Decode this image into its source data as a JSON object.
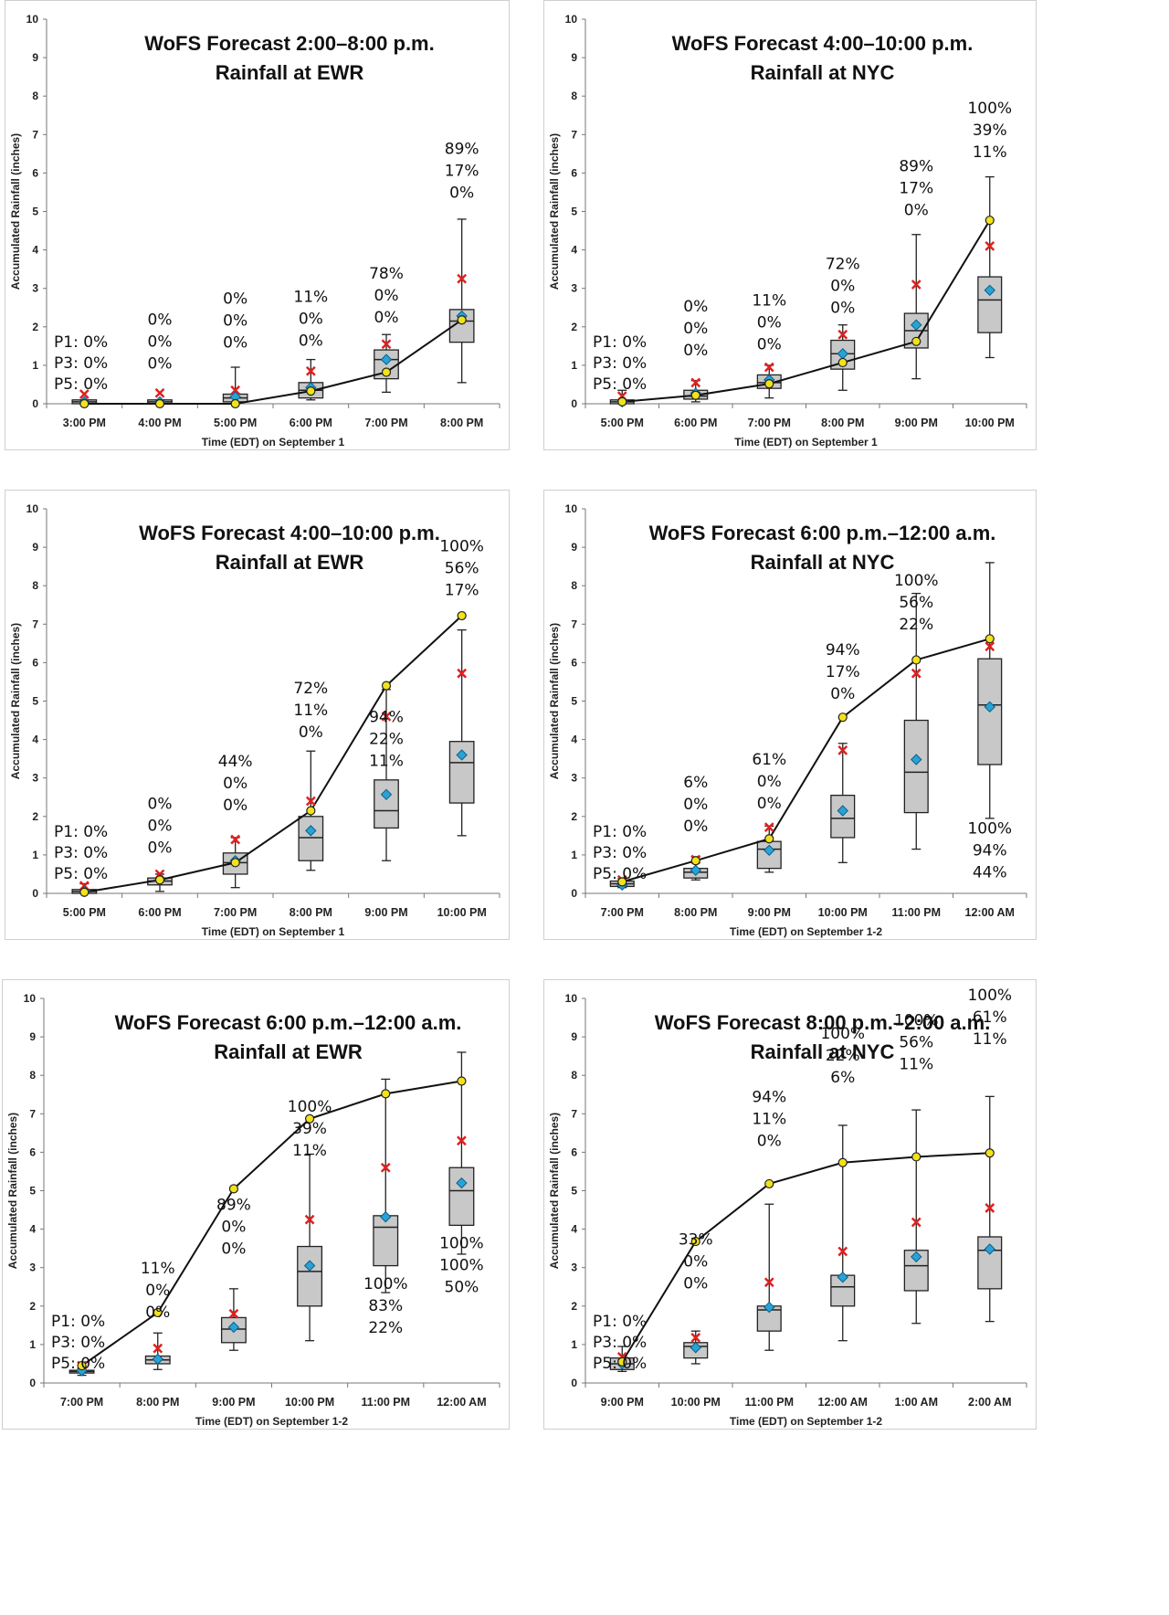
{
  "chart_data": [
    {
      "type": "box",
      "title_lines": [
        "WoFS Forecast 2:00–8:00 p.m.",
        "Rainfall at EWR"
      ],
      "xlabel": "Time (EDT) on September 1",
      "ylabel": "Accumulated Rainfall (inches)",
      "ylim": [
        0,
        10
      ],
      "yticks": [
        "0",
        "1",
        "2",
        "3",
        "4",
        "5",
        "6",
        "7",
        "8",
        "9",
        "10"
      ],
      "categories": [
        "3:00 PM",
        "4:00 PM",
        "5:00 PM",
        "6:00 PM",
        "7:00 PM",
        "8:00 PM"
      ],
      "box": [
        {
          "min": 0,
          "q1": 0,
          "median": 0.05,
          "q3": 0.1,
          "max": 0.1
        },
        {
          "min": 0,
          "q1": 0,
          "median": 0.05,
          "q3": 0.1,
          "max": 0.1
        },
        {
          "min": 0,
          "q1": 0.05,
          "median": 0.15,
          "q3": 0.25,
          "max": 0.95
        },
        {
          "min": 0.1,
          "q1": 0.15,
          "median": 0.35,
          "q3": 0.55,
          "max": 1.15
        },
        {
          "min": 0.3,
          "q1": 0.65,
          "median": 1.15,
          "q3": 1.4,
          "max": 1.8
        },
        {
          "min": 0.55,
          "q1": 1.6,
          "median": 2.15,
          "q3": 2.45,
          "max": 4.8
        }
      ],
      "mean": [
        0.05,
        0.05,
        0.18,
        0.42,
        1.15,
        2.28
      ],
      "x_marker": [
        0.25,
        0.28,
        0.35,
        0.85,
        1.55,
        3.25
      ],
      "observed": [
        0,
        0,
        0,
        0.33,
        0.82,
        2.18
      ],
      "probabilities": [
        {
          "category_index": 1,
          "anchor": "top",
          "y": 2.05,
          "lines": [
            "0%",
            "0%",
            "0%"
          ]
        },
        {
          "category_index": 2,
          "anchor": "top",
          "y": 2.6,
          "lines": [
            "0%",
            "0%",
            "0%"
          ]
        },
        {
          "category_index": 3,
          "anchor": "top",
          "y": 2.65,
          "lines": [
            "11%",
            "0%",
            "0%"
          ]
        },
        {
          "category_index": 4,
          "anchor": "top",
          "y": 3.25,
          "lines": [
            "78%",
            "0%",
            "0%"
          ]
        },
        {
          "category_index": 5,
          "anchor": "top",
          "y": 6.5,
          "lines": [
            "89%",
            "17%",
            "0%"
          ]
        }
      ],
      "threshold_labels": [
        "P1: 0%",
        "P3: 0%",
        "P5: 0%"
      ]
    },
    {
      "type": "box",
      "title_lines": [
        "WoFS Forecast 4:00–10:00 p.m.",
        "Rainfall at NYC"
      ],
      "xlabel": "Time (EDT) on September 1",
      "ylabel": "Accumulated Rainfall (inches)",
      "ylim": [
        0,
        10
      ],
      "yticks": [
        "0",
        "1",
        "2",
        "3",
        "4",
        "5",
        "6",
        "7",
        "8",
        "9",
        "10"
      ],
      "categories": [
        "5:00 PM",
        "6:00 PM",
        "7:00 PM",
        "8:00 PM",
        "9:00 PM",
        "10:00 PM"
      ],
      "box": [
        {
          "min": 0,
          "q1": 0,
          "median": 0.05,
          "q3": 0.1,
          "max": 0.35
        },
        {
          "min": 0.05,
          "q1": 0.12,
          "median": 0.2,
          "q3": 0.35,
          "max": 0.6
        },
        {
          "min": 0.15,
          "q1": 0.4,
          "median": 0.55,
          "q3": 0.75,
          "max": 1.0
        },
        {
          "min": 0.35,
          "q1": 0.9,
          "median": 1.3,
          "q3": 1.65,
          "max": 2.05
        },
        {
          "min": 0.65,
          "q1": 1.45,
          "median": 1.9,
          "q3": 2.35,
          "max": 4.4
        },
        {
          "min": 1.2,
          "q1": 1.85,
          "median": 2.7,
          "q3": 3.3,
          "max": 5.9
        }
      ],
      "mean": [
        0.05,
        0.27,
        0.62,
        1.3,
        2.05,
        2.95
      ],
      "x_marker": [
        0.2,
        0.55,
        0.95,
        1.8,
        3.1,
        4.1
      ],
      "observed": [
        0.05,
        0.22,
        0.52,
        1.07,
        1.62,
        4.77
      ],
      "probabilities": [
        {
          "category_index": 1,
          "anchor": "top",
          "y": 2.4,
          "lines": [
            "0%",
            "0%",
            "0%"
          ]
        },
        {
          "category_index": 2,
          "anchor": "top",
          "y": 2.55,
          "lines": [
            "11%",
            "0%",
            "0%"
          ]
        },
        {
          "category_index": 3,
          "anchor": "top",
          "y": 3.5,
          "lines": [
            "72%",
            "0%",
            "0%"
          ]
        },
        {
          "category_index": 4,
          "anchor": "top",
          "y": 6.05,
          "lines": [
            "89%",
            "17%",
            "0%"
          ]
        },
        {
          "category_index": 5,
          "anchor": "top",
          "y": 7.55,
          "lines": [
            "100%",
            "39%",
            "11%"
          ]
        }
      ],
      "threshold_labels": [
        "P1: 0%",
        "P3: 0%",
        "P5: 0%"
      ]
    },
    {
      "type": "box",
      "title_lines": [
        "WoFS Forecast 4:00–10:00 p.m.",
        "Rainfall at EWR"
      ],
      "xlabel": "Time (EDT) on September 1",
      "ylabel": "Accumulated Rainfall (inches)",
      "ylim": [
        0,
        10
      ],
      "yticks": [
        "0",
        "1",
        "2",
        "3",
        "4",
        "5",
        "6",
        "7",
        "8",
        "9",
        "10"
      ],
      "categories": [
        "5:00 PM",
        "6:00 PM",
        "7:00 PM",
        "8:00 PM",
        "9:00 PM",
        "10:00 PM"
      ],
      "box": [
        {
          "min": 0,
          "q1": 0,
          "median": 0.05,
          "q3": 0.1,
          "max": 0.25
        },
        {
          "min": 0.05,
          "q1": 0.22,
          "median": 0.32,
          "q3": 0.4,
          "max": 0.5
        },
        {
          "min": 0.15,
          "q1": 0.5,
          "median": 0.8,
          "q3": 1.05,
          "max": 1.45
        },
        {
          "min": 0.6,
          "q1": 0.85,
          "median": 1.45,
          "q3": 2.0,
          "max": 3.7
        },
        {
          "min": 0.85,
          "q1": 1.7,
          "median": 2.15,
          "q3": 2.95,
          "max": 5.3
        },
        {
          "min": 1.5,
          "q1": 2.35,
          "median": 3.4,
          "q3": 3.95,
          "max": 6.85
        }
      ],
      "mean": [
        0.05,
        0.35,
        0.85,
        1.63,
        2.57,
        3.6
      ],
      "x_marker": [
        0.2,
        0.5,
        1.4,
        2.4,
        4.6,
        5.72
      ],
      "observed": [
        0.03,
        0.35,
        0.8,
        2.15,
        5.4,
        7.22
      ],
      "probabilities": [
        {
          "category_index": 1,
          "anchor": "top",
          "y": 2.2,
          "lines": [
            "0%",
            "0%",
            "0%"
          ]
        },
        {
          "category_index": 2,
          "anchor": "top",
          "y": 3.3,
          "lines": [
            "44%",
            "0%",
            "0%"
          ]
        },
        {
          "category_index": 3,
          "anchor": "top",
          "y": 5.2,
          "lines": [
            "72%",
            "11%",
            "0%"
          ]
        },
        {
          "category_index": 4,
          "anchor": "top",
          "y": 4.45,
          "lines": [
            "94%",
            "22%",
            "11%"
          ]
        },
        {
          "category_index": 5,
          "anchor": "top",
          "y": 8.9,
          "lines": [
            "100%",
            "56%",
            "17%"
          ]
        }
      ],
      "threshold_labels": [
        "P1: 0%",
        "P3: 0%",
        "P5: 0%"
      ]
    },
    {
      "type": "box",
      "title_lines": [
        "WoFS Forecast 6:00 p.m.–12:00 a.m.",
        "Rainfall at NYC"
      ],
      "xlabel": "Time (EDT) on September 1-2",
      "ylabel": "Accumulated Rainfall (inches)",
      "ylim": [
        0,
        10
      ],
      "yticks": [
        "0",
        "1",
        "2",
        "3",
        "4",
        "5",
        "6",
        "7",
        "8",
        "9",
        "10"
      ],
      "categories": [
        "7:00 PM",
        "8:00 PM",
        "9:00 PM",
        "10:00 PM",
        "11:00 PM",
        "12:00 AM"
      ],
      "box": [
        {
          "min": 0.15,
          "q1": 0.18,
          "median": 0.25,
          "q3": 0.32,
          "max": 0.38
        },
        {
          "min": 0.35,
          "q1": 0.4,
          "median": 0.55,
          "q3": 0.65,
          "max": 0.95
        },
        {
          "min": 0.55,
          "q1": 0.65,
          "median": 1.15,
          "q3": 1.35,
          "max": 1.75
        },
        {
          "min": 0.8,
          "q1": 1.45,
          "median": 1.95,
          "q3": 2.55,
          "max": 3.9
        },
        {
          "min": 1.15,
          "q1": 2.1,
          "median": 3.15,
          "q3": 4.5,
          "max": 7.8
        },
        {
          "min": 1.95,
          "q1": 3.35,
          "median": 4.9,
          "q3": 6.1,
          "max": 8.6
        }
      ],
      "mean": [
        0.22,
        0.6,
        1.12,
        2.15,
        3.48,
        4.85
      ],
      "x_marker": [
        0.35,
        0.88,
        1.72,
        3.72,
        5.72,
        6.42
      ],
      "observed": [
        0.3,
        0.85,
        1.42,
        4.58,
        6.07,
        6.62
      ],
      "probabilities": [
        {
          "category_index": 1,
          "anchor": "top",
          "y": 2.75,
          "lines": [
            "6%",
            "0%",
            "0%"
          ]
        },
        {
          "category_index": 2,
          "anchor": "top",
          "y": 3.35,
          "lines": [
            "61%",
            "0%",
            "0%"
          ]
        },
        {
          "category_index": 3,
          "anchor": "top",
          "y": 6.2,
          "lines": [
            "94%",
            "17%",
            "0%"
          ]
        },
        {
          "category_index": 4,
          "anchor": "top",
          "y": 8.0,
          "lines": [
            "100%",
            "56%",
            "22%"
          ]
        },
        {
          "category_index": 5,
          "anchor": "top",
          "y": 1.55,
          "lines": [
            "100%",
            "94%",
            "44%"
          ]
        }
      ],
      "threshold_labels": [
        "P1: 0%",
        "P3: 0%",
        "P5: 0%"
      ]
    },
    {
      "type": "box",
      "title_lines": [
        "WoFS Forecast 6:00 p.m.–12:00 a.m.",
        "Rainfall at EWR"
      ],
      "xlabel": "Time (EDT) on September 1-2",
      "ylabel": "Accumulated Rainfall (inches)",
      "ylim": [
        0,
        10
      ],
      "yticks": [
        "0",
        "1",
        "2",
        "3",
        "4",
        "5",
        "6",
        "7",
        "8",
        "9",
        "10"
      ],
      "categories": [
        "7:00 PM",
        "8:00 PM",
        "9:00 PM",
        "10:00 PM",
        "11:00 PM",
        "12:00 AM"
      ],
      "box": [
        {
          "min": 0.2,
          "q1": 0.28,
          "median": 0.3,
          "q3": 0.33,
          "max": 0.38
        },
        {
          "min": 0.35,
          "q1": 0.5,
          "median": 0.6,
          "q3": 0.7,
          "max": 1.3
        },
        {
          "min": 0.85,
          "q1": 1.05,
          "median": 1.4,
          "q3": 1.7,
          "max": 2.45
        },
        {
          "min": 1.1,
          "q1": 2.0,
          "median": 2.9,
          "q3": 3.55,
          "max": 5.95
        },
        {
          "min": 2.35,
          "q1": 3.05,
          "median": 4.05,
          "q3": 4.35,
          "max": 7.9
        },
        {
          "min": 3.35,
          "q1": 4.1,
          "median": 5.0,
          "q3": 5.6,
          "max": 8.6
        }
      ],
      "mean": [
        0.32,
        0.62,
        1.45,
        3.05,
        4.32,
        5.2
      ],
      "x_marker": [
        0.45,
        0.9,
        1.8,
        4.25,
        5.6,
        6.3
      ],
      "observed": [
        0.45,
        1.83,
        5.05,
        6.87,
        7.52,
        7.85
      ],
      "probabilities": [
        {
          "category_index": 1,
          "anchor": "top",
          "y": 2.85,
          "lines": [
            "11%",
            "0%",
            "0%"
          ]
        },
        {
          "category_index": 2,
          "anchor": "top",
          "y": 4.5,
          "lines": [
            "89%",
            "0%",
            "0%"
          ]
        },
        {
          "category_index": 3,
          "anchor": "top",
          "y": 7.05,
          "lines": [
            "100%",
            "39%",
            "11%"
          ]
        },
        {
          "category_index": 4,
          "anchor": "top",
          "y": 2.45,
          "lines": [
            "100%",
            "83%",
            "22%"
          ]
        },
        {
          "category_index": 5,
          "anchor": "top",
          "y": 3.5,
          "lines": [
            "100%",
            "100%",
            "50%"
          ]
        }
      ],
      "threshold_labels": [
        "P1: 0%",
        "P3: 0%",
        "P5: 0%"
      ]
    },
    {
      "type": "box",
      "title_lines": [
        "WoFS Forecast 8:00 p.m.–2:00 a.m.",
        "Rainfall at NYC"
      ],
      "xlabel": "Time (EDT) on September 1-2",
      "ylabel": "Accumulated Rainfall (inches)",
      "ylim": [
        0,
        10
      ],
      "yticks": [
        "0",
        "1",
        "2",
        "3",
        "4",
        "5",
        "6",
        "7",
        "8",
        "9",
        "10"
      ],
      "categories": [
        "9:00 PM",
        "10:00 PM",
        "11:00 PM",
        "12:00 AM",
        "1:00 AM",
        "2:00 AM"
      ],
      "box": [
        {
          "min": 0.3,
          "q1": 0.35,
          "median": 0.5,
          "q3": 0.65,
          "max": 0.95
        },
        {
          "min": 0.5,
          "q1": 0.65,
          "median": 0.95,
          "q3": 1.05,
          "max": 1.35
        },
        {
          "min": 0.85,
          "q1": 1.35,
          "median": 1.9,
          "q3": 2.0,
          "max": 4.65
        },
        {
          "min": 1.1,
          "q1": 2.0,
          "median": 2.5,
          "q3": 2.8,
          "max": 6.7
        },
        {
          "min": 1.55,
          "q1": 2.4,
          "median": 3.05,
          "q3": 3.45,
          "max": 7.1
        },
        {
          "min": 1.6,
          "q1": 2.45,
          "median": 3.45,
          "q3": 3.8,
          "max": 7.45
        }
      ],
      "mean": [
        0.5,
        0.92,
        1.97,
        2.75,
        3.28,
        3.48
      ],
      "x_marker": [
        0.68,
        1.18,
        2.62,
        3.42,
        4.18,
        4.55
      ],
      "observed": [
        0.55,
        3.68,
        5.18,
        5.73,
        5.88,
        5.98
      ],
      "probabilities": [
        {
          "category_index": 1,
          "anchor": "top",
          "y": 3.6,
          "lines": [
            "33%",
            "0%",
            "0%"
          ]
        },
        {
          "category_index": 2,
          "anchor": "top",
          "y": 7.3,
          "lines": [
            "94%",
            "11%",
            "0%"
          ]
        },
        {
          "category_index": 3,
          "anchor": "top",
          "y": 8.95,
          "lines": [
            "100%",
            "22%",
            "6%"
          ]
        },
        {
          "category_index": 4,
          "anchor": "top",
          "y": 9.3,
          "lines": [
            "100%",
            "56%",
            "11%"
          ]
        },
        {
          "category_index": 5,
          "anchor": "top",
          "y": 9.95,
          "lines": [
            "100%",
            "61%",
            "11%"
          ]
        }
      ],
      "threshold_labels": [
        "P1: 0%",
        "P3: 0%",
        "P5: 0%"
      ]
    }
  ]
}
